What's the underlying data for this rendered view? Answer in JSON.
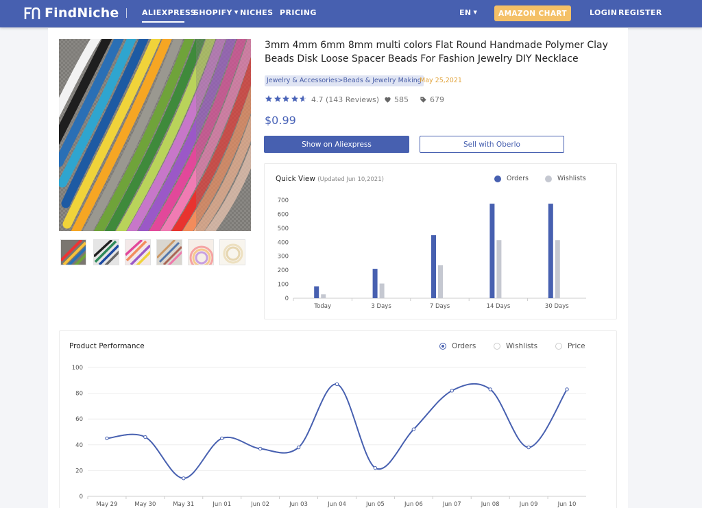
{
  "header": {
    "logo": "FindNiche",
    "nav": {
      "aliexpress": "ALIEXPRESS",
      "shopify": "SHOPIFY",
      "niches": "NICHES",
      "pricing": "PRICING"
    },
    "language": "EN",
    "amazon_chart": "AMAZON CHART",
    "login": "LOGIN",
    "register": "REGISTER",
    "colors": {
      "bar": "#4760b0",
      "amazon_button": "#f4c067"
    }
  },
  "product": {
    "title": "3mm 4mm 6mm 8mm multi colors Flat Round Handmade Polymer Clay Beads Disk Loose Spacer Beads For Fashion Jewelry DIY Necklace",
    "category": "Jewelry & Accessories>Beads & Jewelry Making",
    "date": "May 25,2021",
    "rating": "4.7 (143 Reviews)",
    "rating_value": 4.7,
    "likes": "585",
    "tags_count": "679",
    "price": "$0.99",
    "show_button": "Show on Aliexpress",
    "oberlo_button": "Sell with Oberlo"
  },
  "quick_view": {
    "title": "Quick View",
    "updated": "(Updated Jun 10,2021)",
    "legend": {
      "orders": "Orders",
      "wishlists": "Wishlists"
    }
  },
  "performance": {
    "title": "Product Performance",
    "options": {
      "orders": "Orders",
      "wishlists": "Wishlists",
      "price": "Price"
    },
    "selected": "orders"
  },
  "chart_data": [
    {
      "type": "bar",
      "categories": [
        "Today",
        "3 Days",
        "7 Days",
        "14 Days",
        "30 Days"
      ],
      "series": [
        {
          "name": "Orders",
          "values": [
            85,
            210,
            450,
            675,
            675
          ],
          "color": "#4760b0"
        },
        {
          "name": "Wishlists",
          "values": [
            28,
            105,
            235,
            415,
            415
          ],
          "color": "#c5c8d1"
        }
      ],
      "yticks": [
        0,
        100,
        200,
        300,
        400,
        500,
        600,
        700
      ],
      "ylim": [
        0,
        700
      ],
      "legend": "top-right",
      "grid": false
    },
    {
      "type": "line",
      "x": [
        "May 29",
        "May 30",
        "May 31",
        "Jun 01",
        "Jun 02",
        "Jun 03",
        "Jun 04",
        "Jun 05",
        "Jun 06",
        "Jun 07",
        "Jun 08",
        "Jun 09",
        "Jun 10"
      ],
      "series": [
        {
          "name": "Orders",
          "values": [
            45,
            46,
            14,
            45,
            37,
            38,
            87,
            22,
            52,
            82,
            83,
            38,
            83
          ],
          "color": "#4760b0"
        }
      ],
      "yticks": [
        0,
        20,
        40,
        60,
        80,
        100
      ],
      "ylim": [
        0,
        100
      ],
      "grid": true
    }
  ]
}
